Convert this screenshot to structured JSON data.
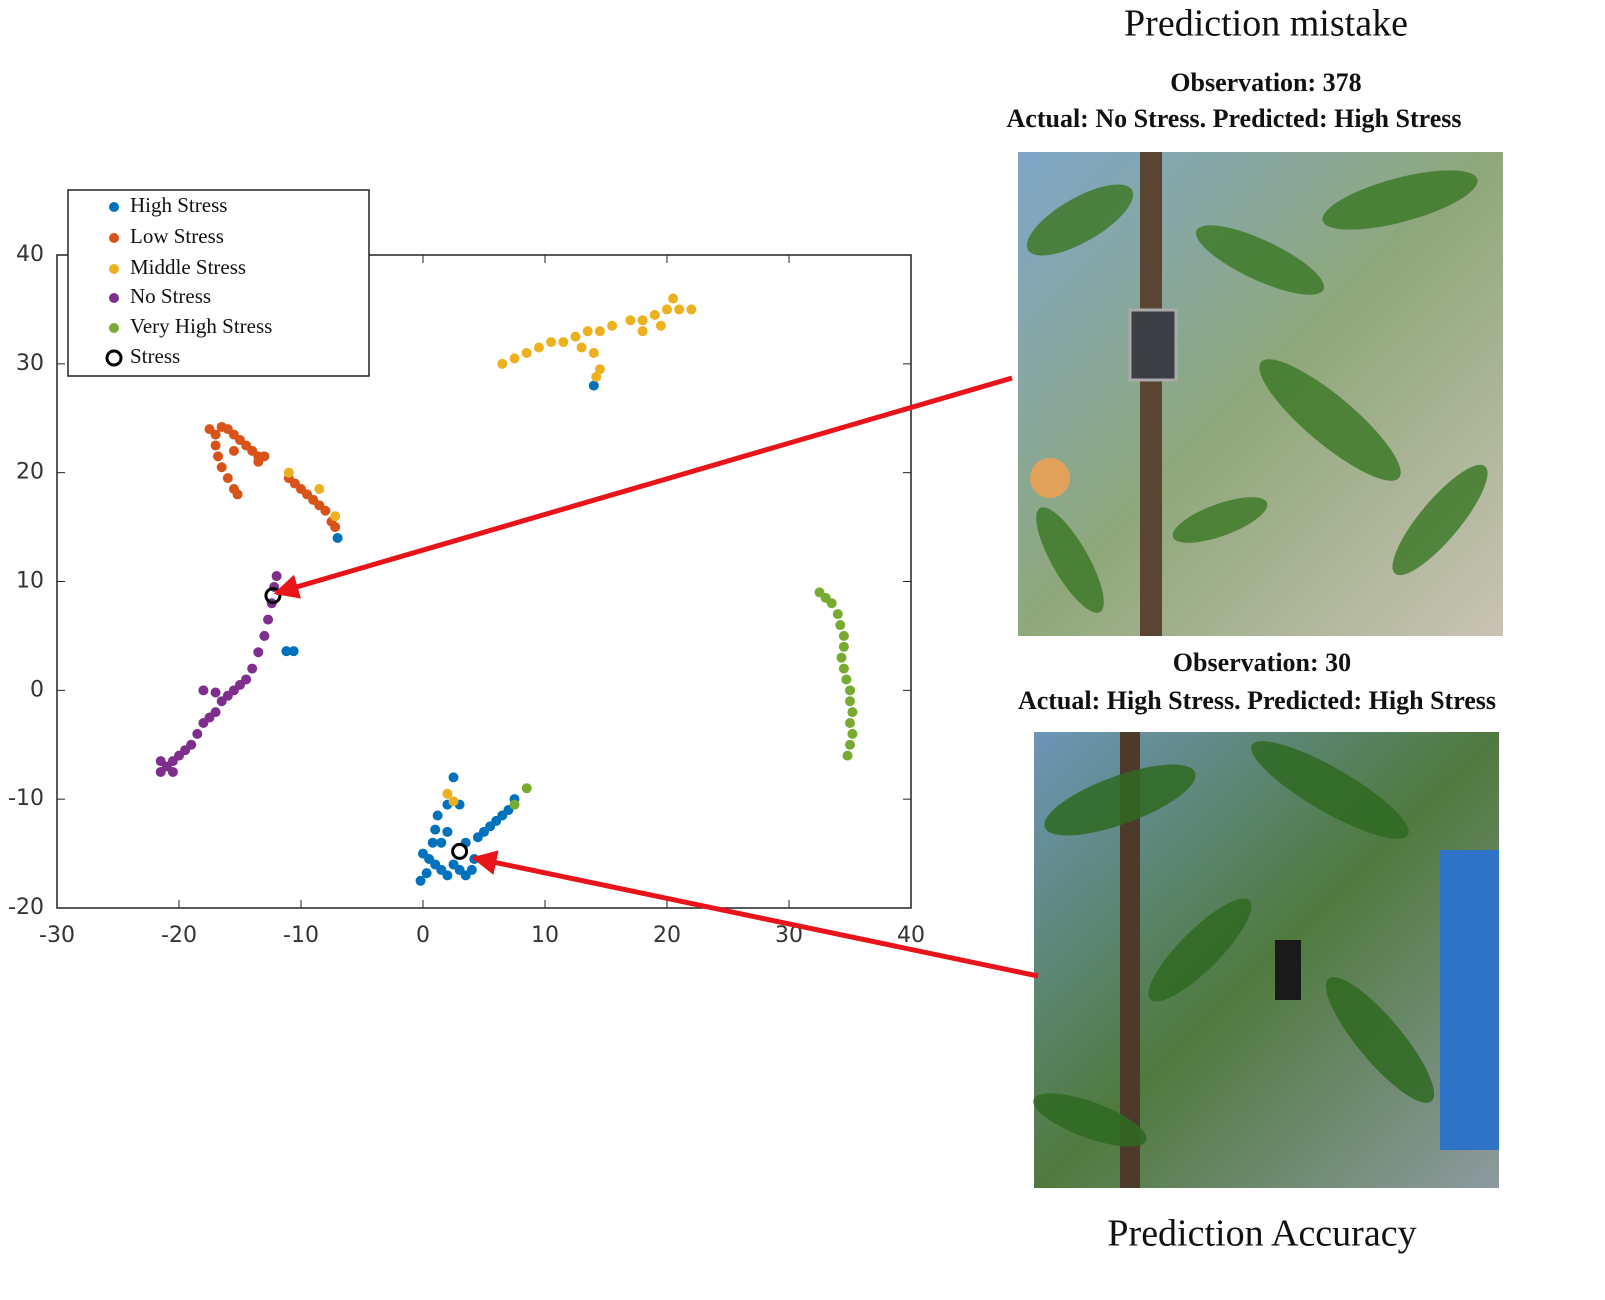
{
  "chart_data": {
    "type": "scatter",
    "xlim": [
      -30,
      40
    ],
    "xticks": [
      -30,
      -20,
      -10,
      0,
      10,
      20,
      30,
      40
    ],
    "ylim": [
      -20,
      40
    ],
    "yticks": [
      -20,
      -10,
      0,
      10,
      20,
      30,
      40
    ],
    "legend": "upper left",
    "annotations": [
      "Prediction mistake",
      "Observation: 378",
      "Actual: No Stress. Predicted: High Stress",
      "Observation: 30",
      "Actual: High Stress. Predicted: High Stress",
      "Prediction Accuracy"
    ],
    "series": [
      {
        "name": "High Stress",
        "color": "#0072bd",
        "marker": "dot",
        "x": [
          -0.2,
          0.3,
          0.5,
          0.8,
          1,
          1.2,
          1.5,
          2,
          2.5,
          3,
          3.5,
          4,
          4.2,
          3.5,
          4.5,
          5,
          5.5,
          6,
          6.5,
          7,
          7.5,
          1.5,
          2,
          2.5,
          2,
          3,
          14,
          -7,
          -11.2,
          -10.6,
          1,
          0
        ],
        "values": [
          -17.5,
          -16.8,
          -15.5,
          -14,
          -12.8,
          -11.5,
          -16.5,
          -17,
          -16,
          -16.5,
          -17,
          -16.5,
          -15.5,
          -14,
          -13.5,
          -13,
          -12.5,
          -12,
          -11.5,
          -11,
          -10,
          -14,
          -13,
          -8,
          -10.5,
          -10.5,
          28,
          14,
          3.6,
          3.6,
          -16,
          -15
        ]
      },
      {
        "name": "Low Stress",
        "color": "#d95319",
        "marker": "dot",
        "x": [
          -17.5,
          -17,
          -16.5,
          -16,
          -15.5,
          -15,
          -14.5,
          -14,
          -13.5,
          -13,
          -13.5,
          -17,
          -16.8,
          -16.5,
          -16,
          -15.5,
          -15.2,
          -15.5,
          -11,
          -10.5,
          -10,
          -9.5,
          -9,
          -8.5,
          -8,
          -7.5,
          -7.2
        ],
        "values": [
          24,
          23.5,
          24.2,
          24,
          23.5,
          23,
          22.5,
          22,
          21.5,
          21.5,
          21,
          22.5,
          21.5,
          20.5,
          19.5,
          18.5,
          18,
          22,
          19.5,
          19,
          18.5,
          18,
          17.5,
          17,
          16.5,
          15.5,
          15
        ]
      },
      {
        "name": "Middle Stress",
        "color": "#edb120",
        "marker": "dot",
        "x": [
          6.5,
          7.5,
          8.5,
          9.5,
          10.5,
          11.5,
          12.5,
          13.5,
          14.5,
          15.5,
          13,
          14,
          17,
          18,
          19,
          20,
          21,
          22,
          20.5,
          19.5,
          18,
          14.5,
          14.2,
          -11,
          -8.5,
          -7.2,
          2,
          2.5
        ],
        "values": [
          30,
          30.5,
          31,
          31.5,
          32,
          32,
          32.5,
          33,
          33,
          33.5,
          31.5,
          31,
          34,
          34,
          34.5,
          35,
          35,
          35,
          36,
          33.5,
          33,
          29.5,
          28.8,
          20,
          18.5,
          16,
          -9.5,
          -10.2
        ]
      },
      {
        "name": "No Stress",
        "color": "#7e2f8e",
        "marker": "dot",
        "x": [
          -21.5,
          -21,
          -20.5,
          -20,
          -19.5,
          -19,
          -18.5,
          -18,
          -17.5,
          -17,
          -16.5,
          -16,
          -15.5,
          -15,
          -14.5,
          -14,
          -13.5,
          -13,
          -12.7,
          -12.4,
          -12.2,
          -12,
          -18,
          -17,
          -21.5,
          -20.5
        ],
        "values": [
          -7.5,
          -7,
          -6.5,
          -6,
          -5.5,
          -5,
          -4,
          -3,
          -2.5,
          -2,
          -1,
          -0.5,
          0,
          0.5,
          1,
          2,
          3.5,
          5,
          6.5,
          8,
          9.5,
          10.5,
          0,
          -0.2,
          -6.5,
          -7.5
        ]
      },
      {
        "name": "Very High Stress",
        "color": "#77ac30",
        "marker": "dot",
        "x": [
          32.5,
          33,
          33.5,
          34,
          34.2,
          34.5,
          34.5,
          34.3,
          34.5,
          34.7,
          35,
          35,
          35.2,
          35,
          35.2,
          35,
          34.8,
          7.5,
          8.5
        ],
        "values": [
          9,
          8.5,
          8,
          7,
          6,
          5,
          4,
          3,
          2,
          1,
          0,
          -1,
          -2,
          -3,
          -4,
          -5,
          -6,
          -10.5,
          -9
        ]
      },
      {
        "name": "Stress",
        "color": "#000000",
        "marker": "open-circle",
        "x": [
          -12.3,
          3
        ],
        "values": [
          8.7,
          -14.8
        ]
      }
    ]
  }
}
